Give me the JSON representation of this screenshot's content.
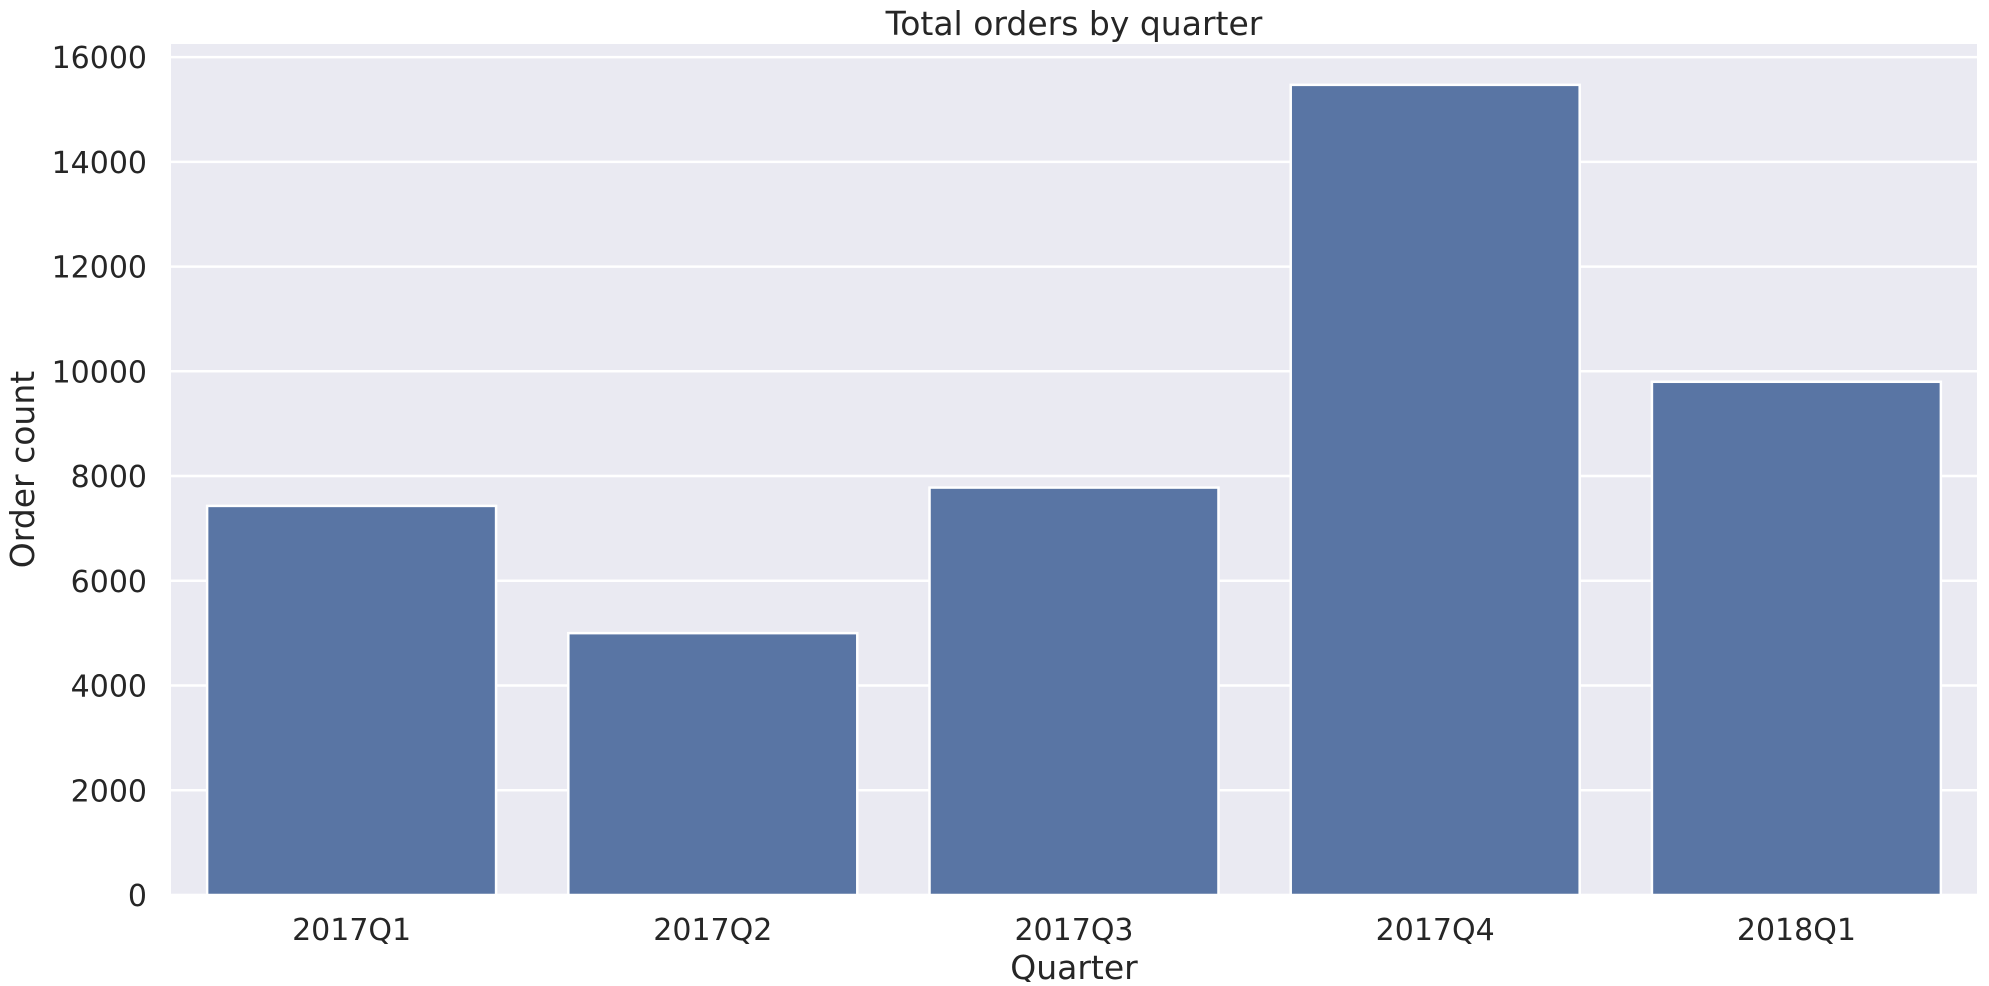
{
  "chart_data": {
    "type": "bar",
    "title": "Total orders by quarter",
    "xlabel": "Quarter",
    "ylabel": "Order count",
    "categories": [
      "2017Q1",
      "2017Q2",
      "2017Q3",
      "2017Q4",
      "2018Q1"
    ],
    "values": [
      7430,
      5000,
      7780,
      15470,
      9800
    ],
    "ylim": [
      0,
      16250
    ],
    "yticks": [
      0,
      2000,
      4000,
      6000,
      8000,
      10000,
      12000,
      14000,
      16000
    ],
    "grid": true,
    "colors": {
      "bar": "#5975a4",
      "plot_background": "#eaeaf2",
      "grid": "#ffffff",
      "text": "#262626"
    }
  }
}
